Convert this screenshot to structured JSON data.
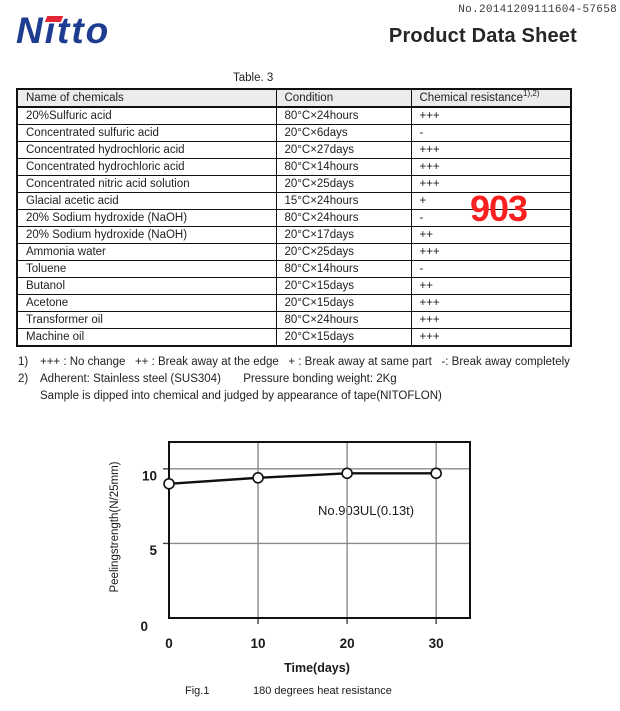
{
  "header": {
    "doc_number": "No.20141209111604-57658",
    "logo_text": "Nitto",
    "title": "Product Data Sheet"
  },
  "colors": {
    "logo_blue": "#1d3d91",
    "logo_red": "#e32636",
    "watermark_red": "#fa2020",
    "table_header_bg": "#ececec"
  },
  "table": {
    "caption": "Table. 3",
    "columns": [
      "Name of chemicals",
      "Condition",
      "Chemical resistance"
    ],
    "superscript": "1),2)",
    "rows": [
      [
        "20%Sulfuric acid",
        "80°C×24hours",
        "+++"
      ],
      [
        "Concentrated sulfuric acid",
        "20°C×6days",
        "-"
      ],
      [
        "Concentrated hydrochloric acid",
        "20°C×27days",
        "+++"
      ],
      [
        "Concentrated hydrochloric acid",
        "80°C×14hours",
        "+++"
      ],
      [
        "Concentrated nitric acid solution",
        "20°C×25days",
        "+++"
      ],
      [
        "Glacial acetic acid",
        "15°C×24hours",
        "+"
      ],
      [
        "20% Sodium hydroxide (NaOH)",
        "80°C×24hours",
        "-"
      ],
      [
        "20% Sodium hydroxide (NaOH)",
        "20°C×17days",
        "++"
      ],
      [
        "Ammonia water",
        "20°C×25days",
        "+++"
      ],
      [
        "Toluene",
        "80°C×14hours",
        "-"
      ],
      [
        "Butanol",
        "20°C×15days",
        "++"
      ],
      [
        "Acetone",
        "20°C×15days",
        "+++"
      ],
      [
        "Transformer oil",
        "80°C×24hours",
        "+++"
      ],
      [
        "Machine oil",
        "20°C×15days",
        "+++"
      ]
    ]
  },
  "watermark": {
    "text": "903"
  },
  "footnotes": {
    "n1_label": "1)",
    "n1_text": "+++ : No change   ++ : Break away at the edge   + : Break away at same part   -: Break away completely",
    "n2_label": "2)",
    "n2_text": "Adherent: Stainless steel (SUS304)       Pressure bonding weight: 2Kg",
    "n2_cont": "Sample is dipped into chemical and judged by appearance of tape(NITOFLON)"
  },
  "chart_data": {
    "type": "line",
    "fig_label": "Fig.1",
    "title": "180 degrees heat resistance",
    "xlabel": "Time(days)",
    "ylabel": "Peelingstrength(N/25mm)",
    "x": [
      0,
      10,
      20,
      30
    ],
    "series": [
      {
        "name": "No.903UL(0.13t)",
        "values": [
          9.0,
          9.4,
          9.7,
          9.7
        ]
      }
    ],
    "xlim": [
      0,
      33.8
    ],
    "ylim": [
      0,
      11.8
    ],
    "x_ticks": [
      0,
      10,
      20,
      30
    ],
    "y_ticks": [
      0,
      5,
      10
    ],
    "x_gridlines": [
      10,
      20,
      30
    ],
    "y_gridlines": [
      5,
      10
    ],
    "grid": true,
    "legend_position": "inside-right",
    "marker": "circle-open",
    "line_color": "#111111"
  }
}
